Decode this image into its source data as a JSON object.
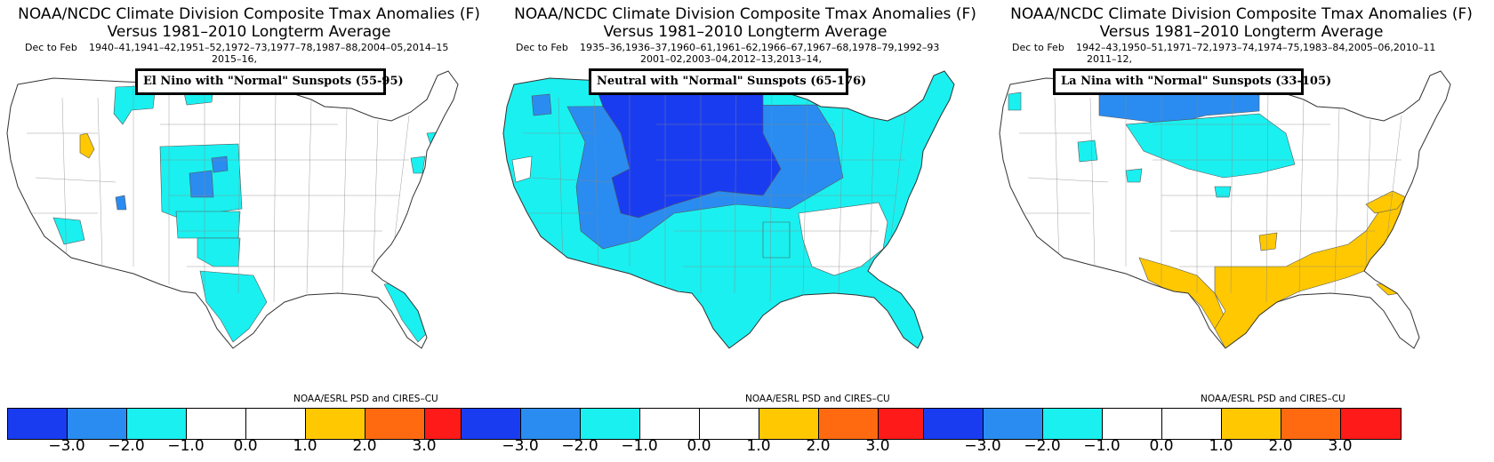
{
  "title_line1": "NOAA/NCDC Climate Division Composite Tmax Anomalies (F)",
  "title_line2": "Versus 1981–2010 Longterm Average",
  "season": "Dec to Feb",
  "credit": "NOAA/ESRL PSD and CIRES–CU",
  "panels": [
    {
      "years_line1": "1940–41,1941–42,1951–52,1972–73,1977–78,1987–88,2004–05,2014–15",
      "years_line2": "2015–16,",
      "label": "El Nino with \"Normal\" Sunspots (55-95)"
    },
    {
      "years_line1": "1935–36,1936–37,1960–61,1961–62,1966–67,1967–68,1978–79,1992–93",
      "years_line2": "2001–02,2003–04,2012–13,2013–14,",
      "label": "Neutral with \"Normal\" Sunspots (65-176)"
    },
    {
      "years_line1": "1942–43,1950–51,1971–72,1973–74,1974–75,1983–84,2005–06,2010–11",
      "years_line2": "2011–12,",
      "label": "La Nina with \"Normal\" Sunspots (33-105)"
    }
  ],
  "colorbar": {
    "colors": [
      "#1a3cf0",
      "#2a8cf0",
      "#1af0f0",
      "#ffffff",
      "#ffffff",
      "#ffc800",
      "#ff6a10",
      "#ff1a1a"
    ],
    "ticks": [
      "−3.0",
      "−2.0",
      "−1.0",
      "0.0",
      "1.0",
      "2.0",
      "3.0"
    ]
  },
  "map_colors": {
    "minus3": "#1a3cf0",
    "minus2": "#2a8cf0",
    "minus1": "#1af0f0",
    "plus1": "#ffc800"
  }
}
